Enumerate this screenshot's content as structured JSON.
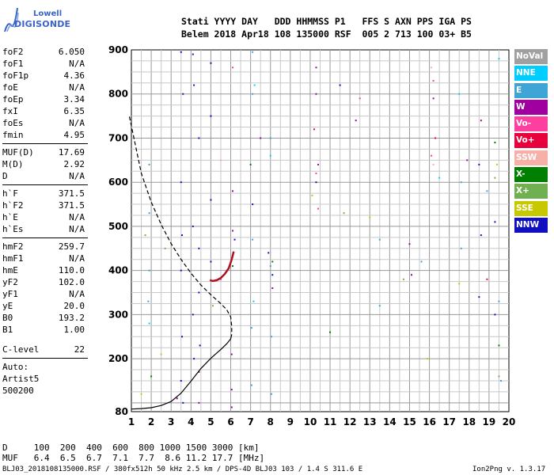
{
  "logo": {
    "line1": "Lowell",
    "line2": "DIGISONDE"
  },
  "header": {
    "row1": "Stati YYYY DAY   DDD HHMMSS P1   FFS S AXN PPS IGA PS",
    "row2": "Belem 2018 Apr18 108 135000 RSF  005 2 713 100 03+ B5"
  },
  "params": [
    {
      "label": "foF2",
      "value": "6.050"
    },
    {
      "label": "foF1",
      "value": "N/A"
    },
    {
      "label": "foF1p",
      "value": "4.36"
    },
    {
      "label": "foE",
      "value": "N/A"
    },
    {
      "label": "foEp",
      "value": "3.34"
    },
    {
      "label": "fxI",
      "value": "6.35"
    },
    {
      "label": "foEs",
      "value": "N/A"
    },
    {
      "label": "fmin",
      "value": "4.95"
    },
    {
      "label": "MUF(D)",
      "value": "17.69"
    },
    {
      "label": "M(D)",
      "value": "2.92"
    },
    {
      "label": "D",
      "value": "N/A"
    },
    {
      "label": "h`F",
      "value": "371.5"
    },
    {
      "label": "h`F2",
      "value": "371.5"
    },
    {
      "label": "h`E",
      "value": "N/A"
    },
    {
      "label": "h`Es",
      "value": "N/A"
    },
    {
      "label": "hmF2",
      "value": "259.7"
    },
    {
      "label": "hmF1",
      "value": "N/A"
    },
    {
      "label": "hmE",
      "value": "110.0"
    },
    {
      "label": "yF2",
      "value": "102.0"
    },
    {
      "label": "yF1",
      "value": "N/A"
    },
    {
      "label": "yE",
      "value": "20.0"
    },
    {
      "label": "B0",
      "value": "193.2"
    },
    {
      "label": "B1",
      "value": "1.00"
    },
    {
      "label": "C-level",
      "value": "22"
    }
  ],
  "auto": {
    "line1": "Auto:",
    "line2": "Artist5",
    "line3": "500200"
  },
  "footer": {
    "d_row": "D     100  200  400  600  800 1000 1500 3000 [km]",
    "muf_row": "MUF   6.4  6.5  6.7  7.1  7.7  8.6 11.2 17.7 [MHz]",
    "file_info": "BLJ03_2018108135000.RSF / 380fx512h 50 kHz 2.5 km / DPS-4D BLJ03 103 / 1.4 S 311.6 E",
    "version": "Ion2Png v. 1.3.17"
  },
  "legend": [
    {
      "label": "NoVal",
      "color": "#a0a0a0"
    },
    {
      "label": "NNE",
      "color": "#00cdff"
    },
    {
      "label": "E",
      "color": "#3fa4d6"
    },
    {
      "label": "W",
      "color": "#a000a0"
    },
    {
      "label": "Vo-",
      "color": "#ff3fa0"
    },
    {
      "label": "Vo+",
      "color": "#e8003c"
    },
    {
      "label": "SSW",
      "color": "#f7b0a8"
    },
    {
      "label": "X-",
      "color": "#007f00"
    },
    {
      "label": "X+",
      "color": "#70b050"
    },
    {
      "label": "SSE",
      "color": "#c8c800"
    },
    {
      "label": "NNW",
      "color": "#1010c0"
    }
  ],
  "chart_data": {
    "type": "scatter",
    "title": "",
    "xlabel": "",
    "ylabel": "",
    "xlim": [
      1,
      20
    ],
    "ylim": [
      80,
      900
    ],
    "x_ticks": [
      1,
      2,
      3,
      4,
      5,
      6,
      7,
      8,
      9,
      10,
      11,
      12,
      13,
      14,
      15,
      16,
      17,
      18,
      19,
      20
    ],
    "y_ticks": [
      80,
      200,
      300,
      400,
      500,
      600,
      700,
      800,
      900
    ],
    "grid": true,
    "traces": [
      {
        "name": "",
        "color": "#1010c0",
        "points": [
          [
            3.5,
            895
          ],
          [
            3.5,
            600
          ],
          [
            3.5,
            400
          ],
          [
            3.5,
            150
          ],
          [
            3.55,
            480
          ],
          [
            3.55,
            250
          ],
          [
            3.6,
            800
          ],
          [
            3.6,
            100
          ],
          [
            4.1,
            890
          ],
          [
            4.1,
            500
          ],
          [
            4.1,
            300
          ],
          [
            4.15,
            820
          ],
          [
            4.15,
            200
          ],
          [
            4.4,
            700
          ],
          [
            4.4,
            450
          ],
          [
            4.4,
            350
          ],
          [
            4.45,
            230
          ],
          [
            5.0,
            870
          ],
          [
            5.0,
            750
          ],
          [
            5.0,
            560
          ],
          [
            5.0,
            420
          ],
          [
            6.2,
            470
          ],
          [
            7.1,
            550
          ],
          [
            7.9,
            440
          ],
          [
            8.1,
            390
          ],
          [
            10.3,
            600
          ],
          [
            11.5,
            820
          ],
          [
            18.5,
            640
          ],
          [
            18.6,
            480
          ],
          [
            18.5,
            340
          ],
          [
            19.3,
            510
          ],
          [
            19.3,
            300
          ]
        ]
      },
      {
        "name": "",
        "color": "#3fa4d6",
        "points": [
          [
            1.9,
            640
          ],
          [
            1.9,
            530
          ],
          [
            1.9,
            400
          ],
          [
            1.85,
            330
          ],
          [
            7.1,
            895
          ],
          [
            7.1,
            800
          ],
          [
            7.1,
            470
          ],
          [
            7.05,
            270
          ],
          [
            7.05,
            140
          ],
          [
            8.0,
            700
          ],
          [
            8.0,
            410
          ],
          [
            8.05,
            250
          ],
          [
            8.05,
            120
          ],
          [
            13.5,
            470
          ],
          [
            13.5,
            320
          ],
          [
            15.6,
            420
          ],
          [
            17.6,
            600
          ],
          [
            17.6,
            450
          ],
          [
            18.9,
            580
          ],
          [
            19.5,
            330
          ],
          [
            19.6,
            150
          ]
        ]
      },
      {
        "name": "",
        "color": "#a000a0",
        "points": [
          [
            3.3,
            110
          ],
          [
            4.4,
            170
          ],
          [
            4.4,
            100
          ],
          [
            6.05,
            210
          ],
          [
            6.05,
            130
          ],
          [
            6.05,
            90
          ],
          [
            6.1,
            580
          ],
          [
            6.1,
            490
          ],
          [
            7.5,
            700
          ],
          [
            8.1,
            360
          ],
          [
            10.3,
            860
          ],
          [
            10.3,
            800
          ],
          [
            10.4,
            640
          ],
          [
            12.3,
            740
          ],
          [
            15.0,
            460
          ],
          [
            15.1,
            390
          ],
          [
            16.2,
            790
          ],
          [
            17.9,
            650
          ],
          [
            18.6,
            740
          ]
        ]
      },
      {
        "name": "",
        "color": "#ff3fa0",
        "points": [
          [
            5.5,
            380
          ],
          [
            6.1,
            860
          ],
          [
            10.3,
            620
          ],
          [
            10.4,
            540
          ],
          [
            12.5,
            790
          ],
          [
            16.2,
            830
          ],
          [
            16.1,
            660
          ]
        ]
      },
      {
        "name": "",
        "color": "#e8003c",
        "points": [
          [
            10.2,
            720
          ],
          [
            16.3,
            700
          ],
          [
            18.9,
            380
          ]
        ]
      },
      {
        "name": "",
        "color": "#f7b0a8",
        "points": [
          [
            5.5,
            650
          ],
          [
            16.1,
            860
          ],
          [
            16.2,
            640
          ]
        ]
      },
      {
        "name": "",
        "color": "#007f00",
        "points": [
          [
            2.0,
            160
          ],
          [
            6.1,
            410
          ],
          [
            7.0,
            640
          ],
          [
            8.1,
            420
          ],
          [
            11.0,
            260
          ],
          [
            19.3,
            690
          ],
          [
            19.5,
            230
          ]
        ]
      },
      {
        "name": "",
        "color": "#70b050",
        "points": [
          [
            1.7,
            480
          ],
          [
            2.7,
            450
          ],
          [
            5.1,
            320
          ],
          [
            11.7,
            530
          ],
          [
            14.7,
            380
          ],
          [
            19.3,
            610
          ],
          [
            19.5,
            160
          ]
        ]
      },
      {
        "name": "",
        "color": "#c8c800",
        "points": [
          [
            1.5,
            120
          ],
          [
            2.5,
            210
          ],
          [
            10.1,
            570
          ],
          [
            13.0,
            520
          ],
          [
            15.9,
            200
          ],
          [
            17.5,
            370
          ],
          [
            19.4,
            640
          ]
        ]
      },
      {
        "name": "",
        "color": "#00cdff",
        "points": [
          [
            1.9,
            280
          ],
          [
            7.2,
            820
          ],
          [
            7.15,
            330
          ],
          [
            8.0,
            660
          ],
          [
            16.5,
            610
          ],
          [
            17.5,
            800
          ],
          [
            19.5,
            880
          ]
        ]
      }
    ],
    "profile_curve": [
      [
        0.9,
        749
      ],
      [
        1.5,
        620
      ],
      [
        2.0,
        555
      ],
      [
        2.5,
        504
      ],
      [
        3.0,
        461
      ],
      [
        3.5,
        425
      ],
      [
        4.0,
        394
      ],
      [
        4.5,
        367
      ],
      [
        5.0,
        345
      ],
      [
        5.5,
        325
      ],
      [
        5.8,
        311
      ],
      [
        6.0,
        295
      ],
      [
        6.05,
        273
      ],
      [
        6.05,
        255
      ],
      [
        6.0,
        245
      ],
      [
        5.8,
        234
      ],
      [
        5.5,
        221
      ],
      [
        5.0,
        201
      ],
      [
        4.5,
        178
      ],
      [
        4.0,
        149
      ],
      [
        3.5,
        122
      ],
      [
        3.0,
        103
      ],
      [
        2.5,
        94
      ],
      [
        2.0,
        89
      ],
      [
        1.5,
        87
      ],
      [
        1.0,
        86
      ]
    ],
    "trace_curve": [
      [
        4.95,
        378
      ],
      [
        5.1,
        376
      ],
      [
        5.3,
        378
      ],
      [
        5.5,
        383
      ],
      [
        5.7,
        392
      ],
      [
        5.9,
        405
      ],
      [
        6.05,
        425
      ],
      [
        6.15,
        443
      ]
    ]
  }
}
